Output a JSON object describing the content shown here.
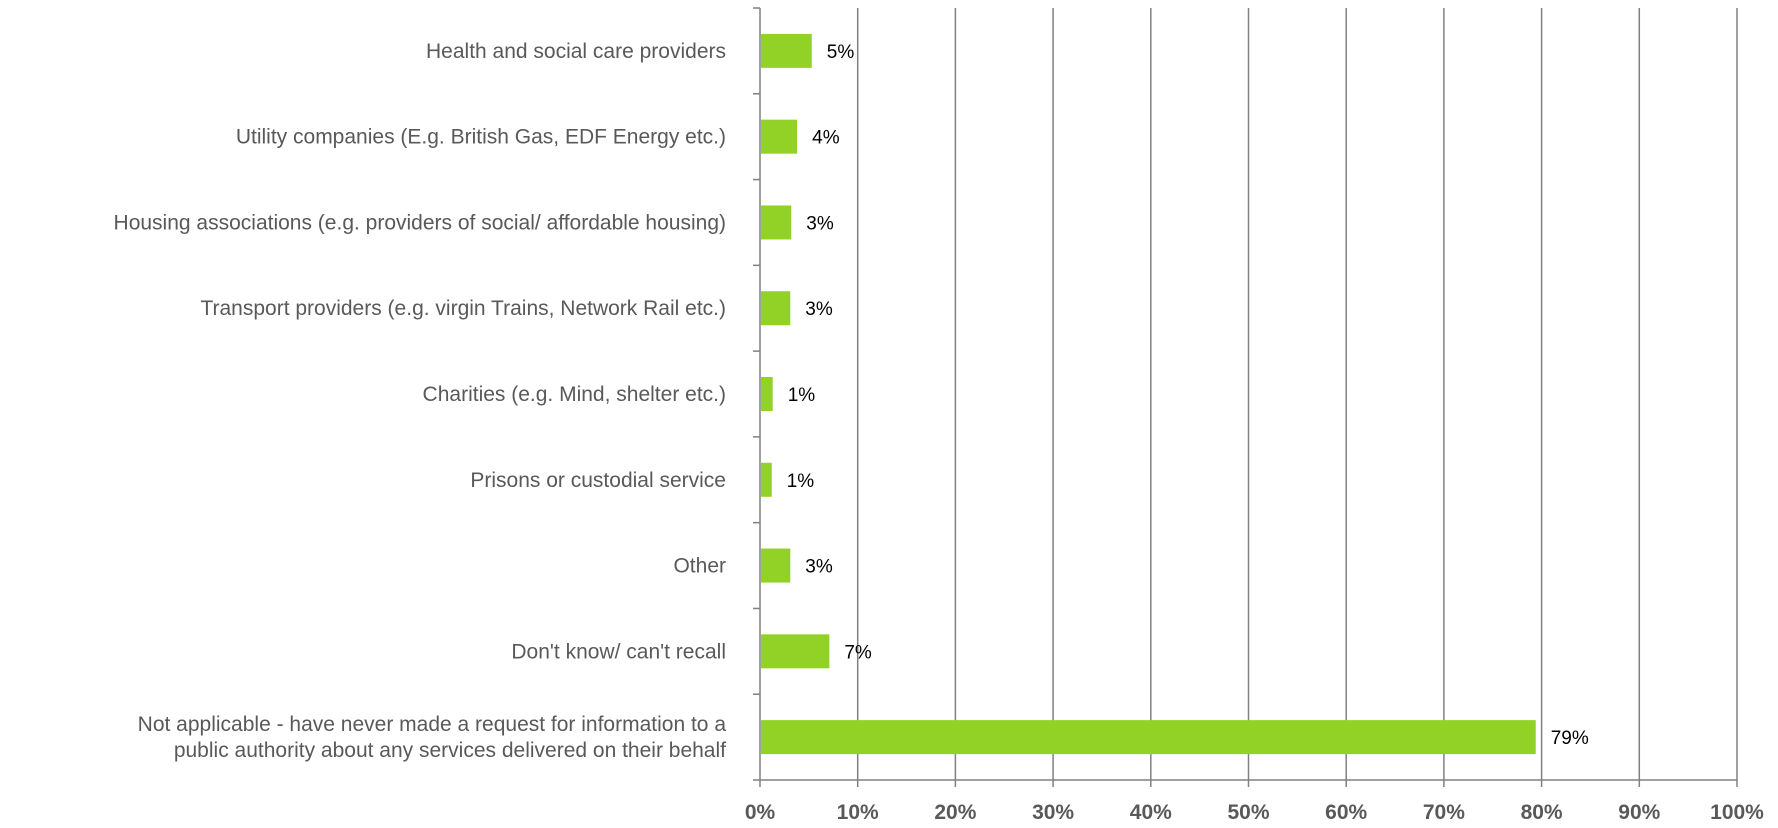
{
  "chart_data": {
    "type": "bar",
    "orientation": "horizontal",
    "categories": [
      [
        "Health and social care providers"
      ],
      [
        "Utility companies (E.g. British Gas, EDF Energy etc.)"
      ],
      [
        "Housing associations (e.g. providers of social/ affordable housing)"
      ],
      [
        "Transport providers (e.g. virgin Trains, Network Rail etc.)"
      ],
      [
        "Charities (e.g. Mind, shelter etc.)"
      ],
      [
        "Prisons or custodial service"
      ],
      [
        "Other"
      ],
      [
        "Don't know/ can't recall"
      ],
      [
        "Not applicable - have never made a request for information to a",
        "public authority about any services delivered on their behalf"
      ]
    ],
    "values": [
      5.3,
      3.8,
      3.2,
      3.1,
      1.3,
      1.2,
      3.1,
      7.1,
      79.4
    ],
    "data_labels": [
      "5%",
      "4%",
      "3%",
      "3%",
      "1%",
      "1%",
      "3%",
      "7%",
      "79%"
    ],
    "xlim": [
      0,
      100
    ],
    "x_ticks": [
      "0%",
      "10%",
      "20%",
      "30%",
      "40%",
      "50%",
      "60%",
      "70%",
      "80%",
      "90%",
      "100%"
    ],
    "title": "",
    "xlabel": "",
    "ylabel": "",
    "grid": "vertical",
    "legend": "none",
    "colors": {
      "bar": "#92D226",
      "grid": "#808080",
      "label": "#595959"
    }
  }
}
